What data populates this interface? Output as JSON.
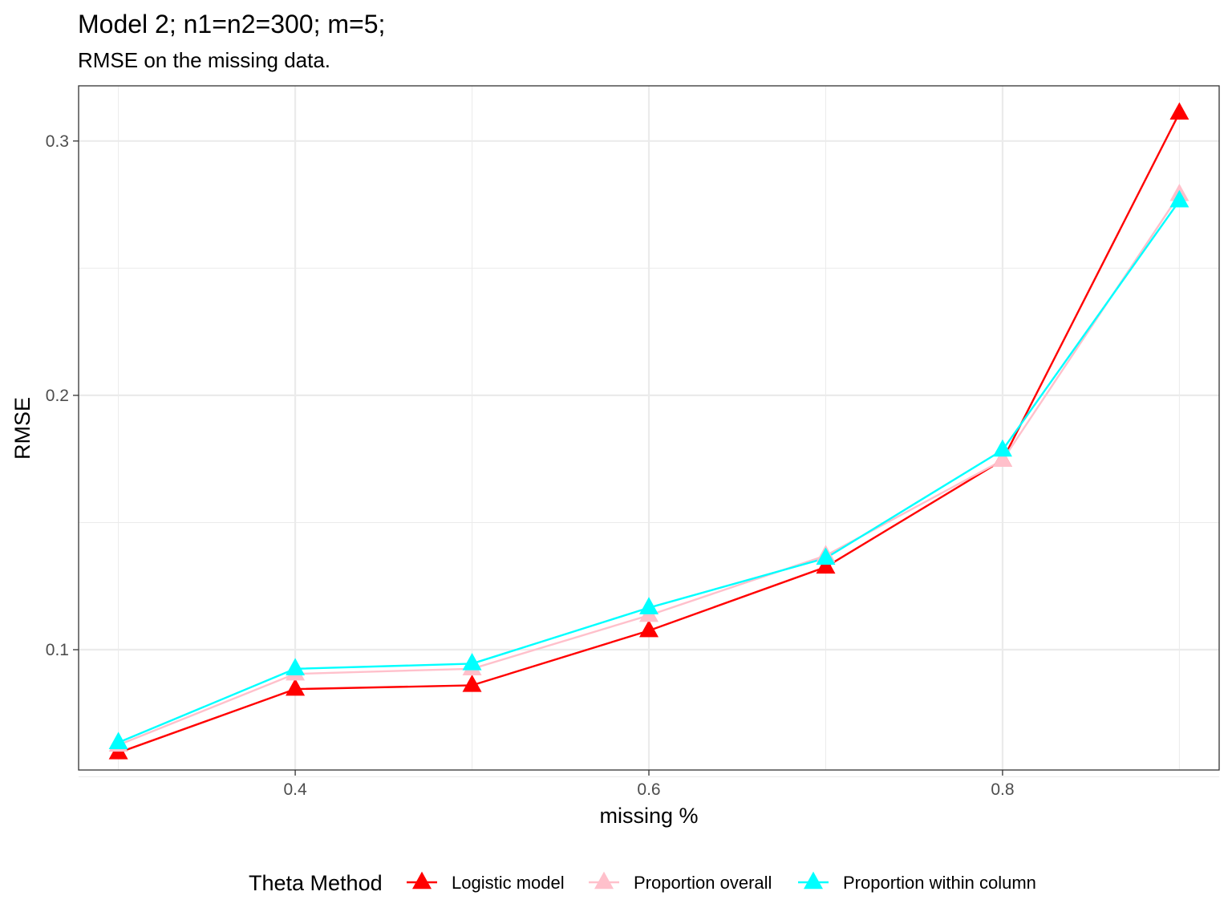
{
  "chart_data": {
    "type": "line",
    "title": "Model 2; n1=n2=300; m=5;",
    "subtitle": "RMSE on the missing data.",
    "xlabel": "missing %",
    "ylabel": "RMSE",
    "x": [
      0.3,
      0.4,
      0.5,
      0.6,
      0.7,
      0.8,
      0.9
    ],
    "xlim": [
      0.2775,
      0.9225
    ],
    "ylim": [
      0.0527,
      0.3217
    ],
    "x_ticks": [
      0.4,
      0.6,
      0.8
    ],
    "x_tick_labels": [
      "0.4",
      "0.6",
      "0.8"
    ],
    "x_minor_ticks": [
      0.3,
      0.5,
      0.7,
      0.9
    ],
    "y_ticks": [
      0.1,
      0.2,
      0.3
    ],
    "y_tick_labels": [
      "0.1",
      "0.2",
      "0.3"
    ],
    "y_minor_ticks": [
      0.05,
      0.15,
      0.25
    ],
    "grid": true,
    "legend_title": "Theta Method",
    "legend_position": "bottom",
    "marker": "triangle",
    "series": [
      {
        "name": "Logistic model",
        "color": "#ff0000",
        "values": [
          0.0595,
          0.0845,
          0.086,
          0.1075,
          0.1325,
          0.1745,
          0.311
        ]
      },
      {
        "name": "Proportion overall",
        "color": "#ffc0cb",
        "values": [
          0.0625,
          0.0905,
          0.0925,
          0.1135,
          0.137,
          0.1745,
          0.279
        ]
      },
      {
        "name": "Proportion within column",
        "color": "#00ffff",
        "values": [
          0.0635,
          0.0925,
          0.0945,
          0.1165,
          0.136,
          0.1785,
          0.2765
        ]
      }
    ]
  }
}
